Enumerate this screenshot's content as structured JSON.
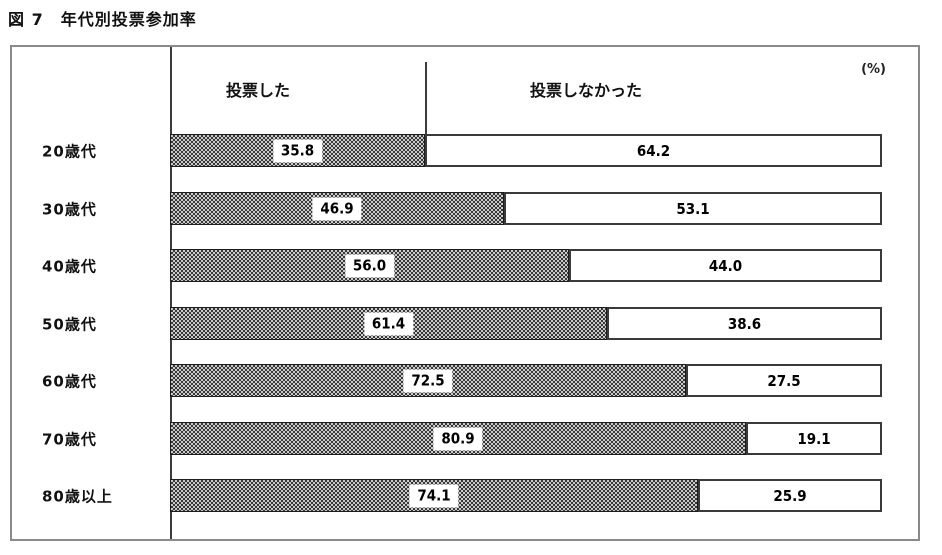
{
  "title": "図 7　年代別投票参加率",
  "unit_label": "(%)",
  "legend": {
    "voted": "投票した",
    "not_voted": "投票しなかった"
  },
  "chart_data": {
    "type": "bar",
    "orientation": "horizontal",
    "stacked": true,
    "title": "図 7 年代別投票参加率",
    "unit": "%",
    "xlim": [
      0,
      100
    ],
    "grid": false,
    "legend_position": "top-header-row",
    "categories": [
      "20歳代",
      "30歳代",
      "40歳代",
      "50歳代",
      "60歳代",
      "70歳代",
      "80歳以上"
    ],
    "series": [
      {
        "name": "投票した",
        "values": [
          35.8,
          46.9,
          56.0,
          61.4,
          72.5,
          80.9,
          74.1
        ]
      },
      {
        "name": "投票しなかった",
        "values": [
          64.2,
          53.1,
          44.0,
          38.6,
          27.5,
          19.1,
          25.9
        ]
      }
    ],
    "colors": {
      "voted_pattern_dark": "#383838",
      "voted_pattern_light": "#c9c9c9",
      "not_voted_fill": "#ffffff",
      "border": "#3a3a3a",
      "frame_border": "#8a8a8a"
    }
  }
}
